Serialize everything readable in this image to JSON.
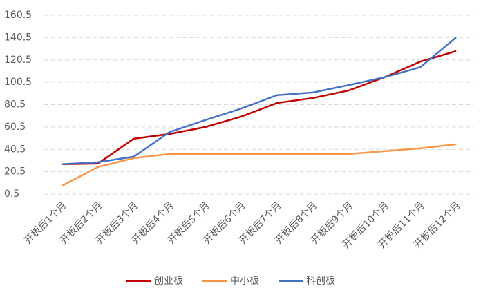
{
  "chart_data": {
    "type": "line",
    "categories": [
      "开板后1个月",
      "开板后2个月",
      "开板后3个月",
      "开板后4个月",
      "开板后5个月",
      "开板后6个月",
      "开板后7个月",
      "开板后8个月",
      "开板后9个月",
      "开板后10个月",
      "开板后11个月",
      "开板后12个月"
    ],
    "series": [
      {
        "name": "创业板",
        "color": "#c00000",
        "values": [
          27.2,
          27.8,
          50,
          54.3,
          60.5,
          69.8,
          82,
          86.4,
          93.2,
          105,
          119,
          128.4
        ]
      },
      {
        "name": "中小板",
        "color": "#f79646",
        "values": [
          8,
          24.7,
          32.7,
          36.4,
          36.4,
          36.4,
          36.4,
          36.4,
          36.4,
          38.9,
          41.4,
          45
        ]
      },
      {
        "name": "科创板",
        "color": "#4472c4",
        "values": [
          27.2,
          29,
          34,
          56,
          66.7,
          77,
          89,
          91.4,
          98,
          105,
          114,
          140.6
        ]
      }
    ],
    "ylim": [
      0.5,
      160.5
    ],
    "yticks": [
      0.5,
      20.5,
      40.5,
      60.5,
      80.5,
      100.5,
      120.5,
      140.5,
      160.5
    ],
    "grid": true,
    "legend": "bottom"
  }
}
